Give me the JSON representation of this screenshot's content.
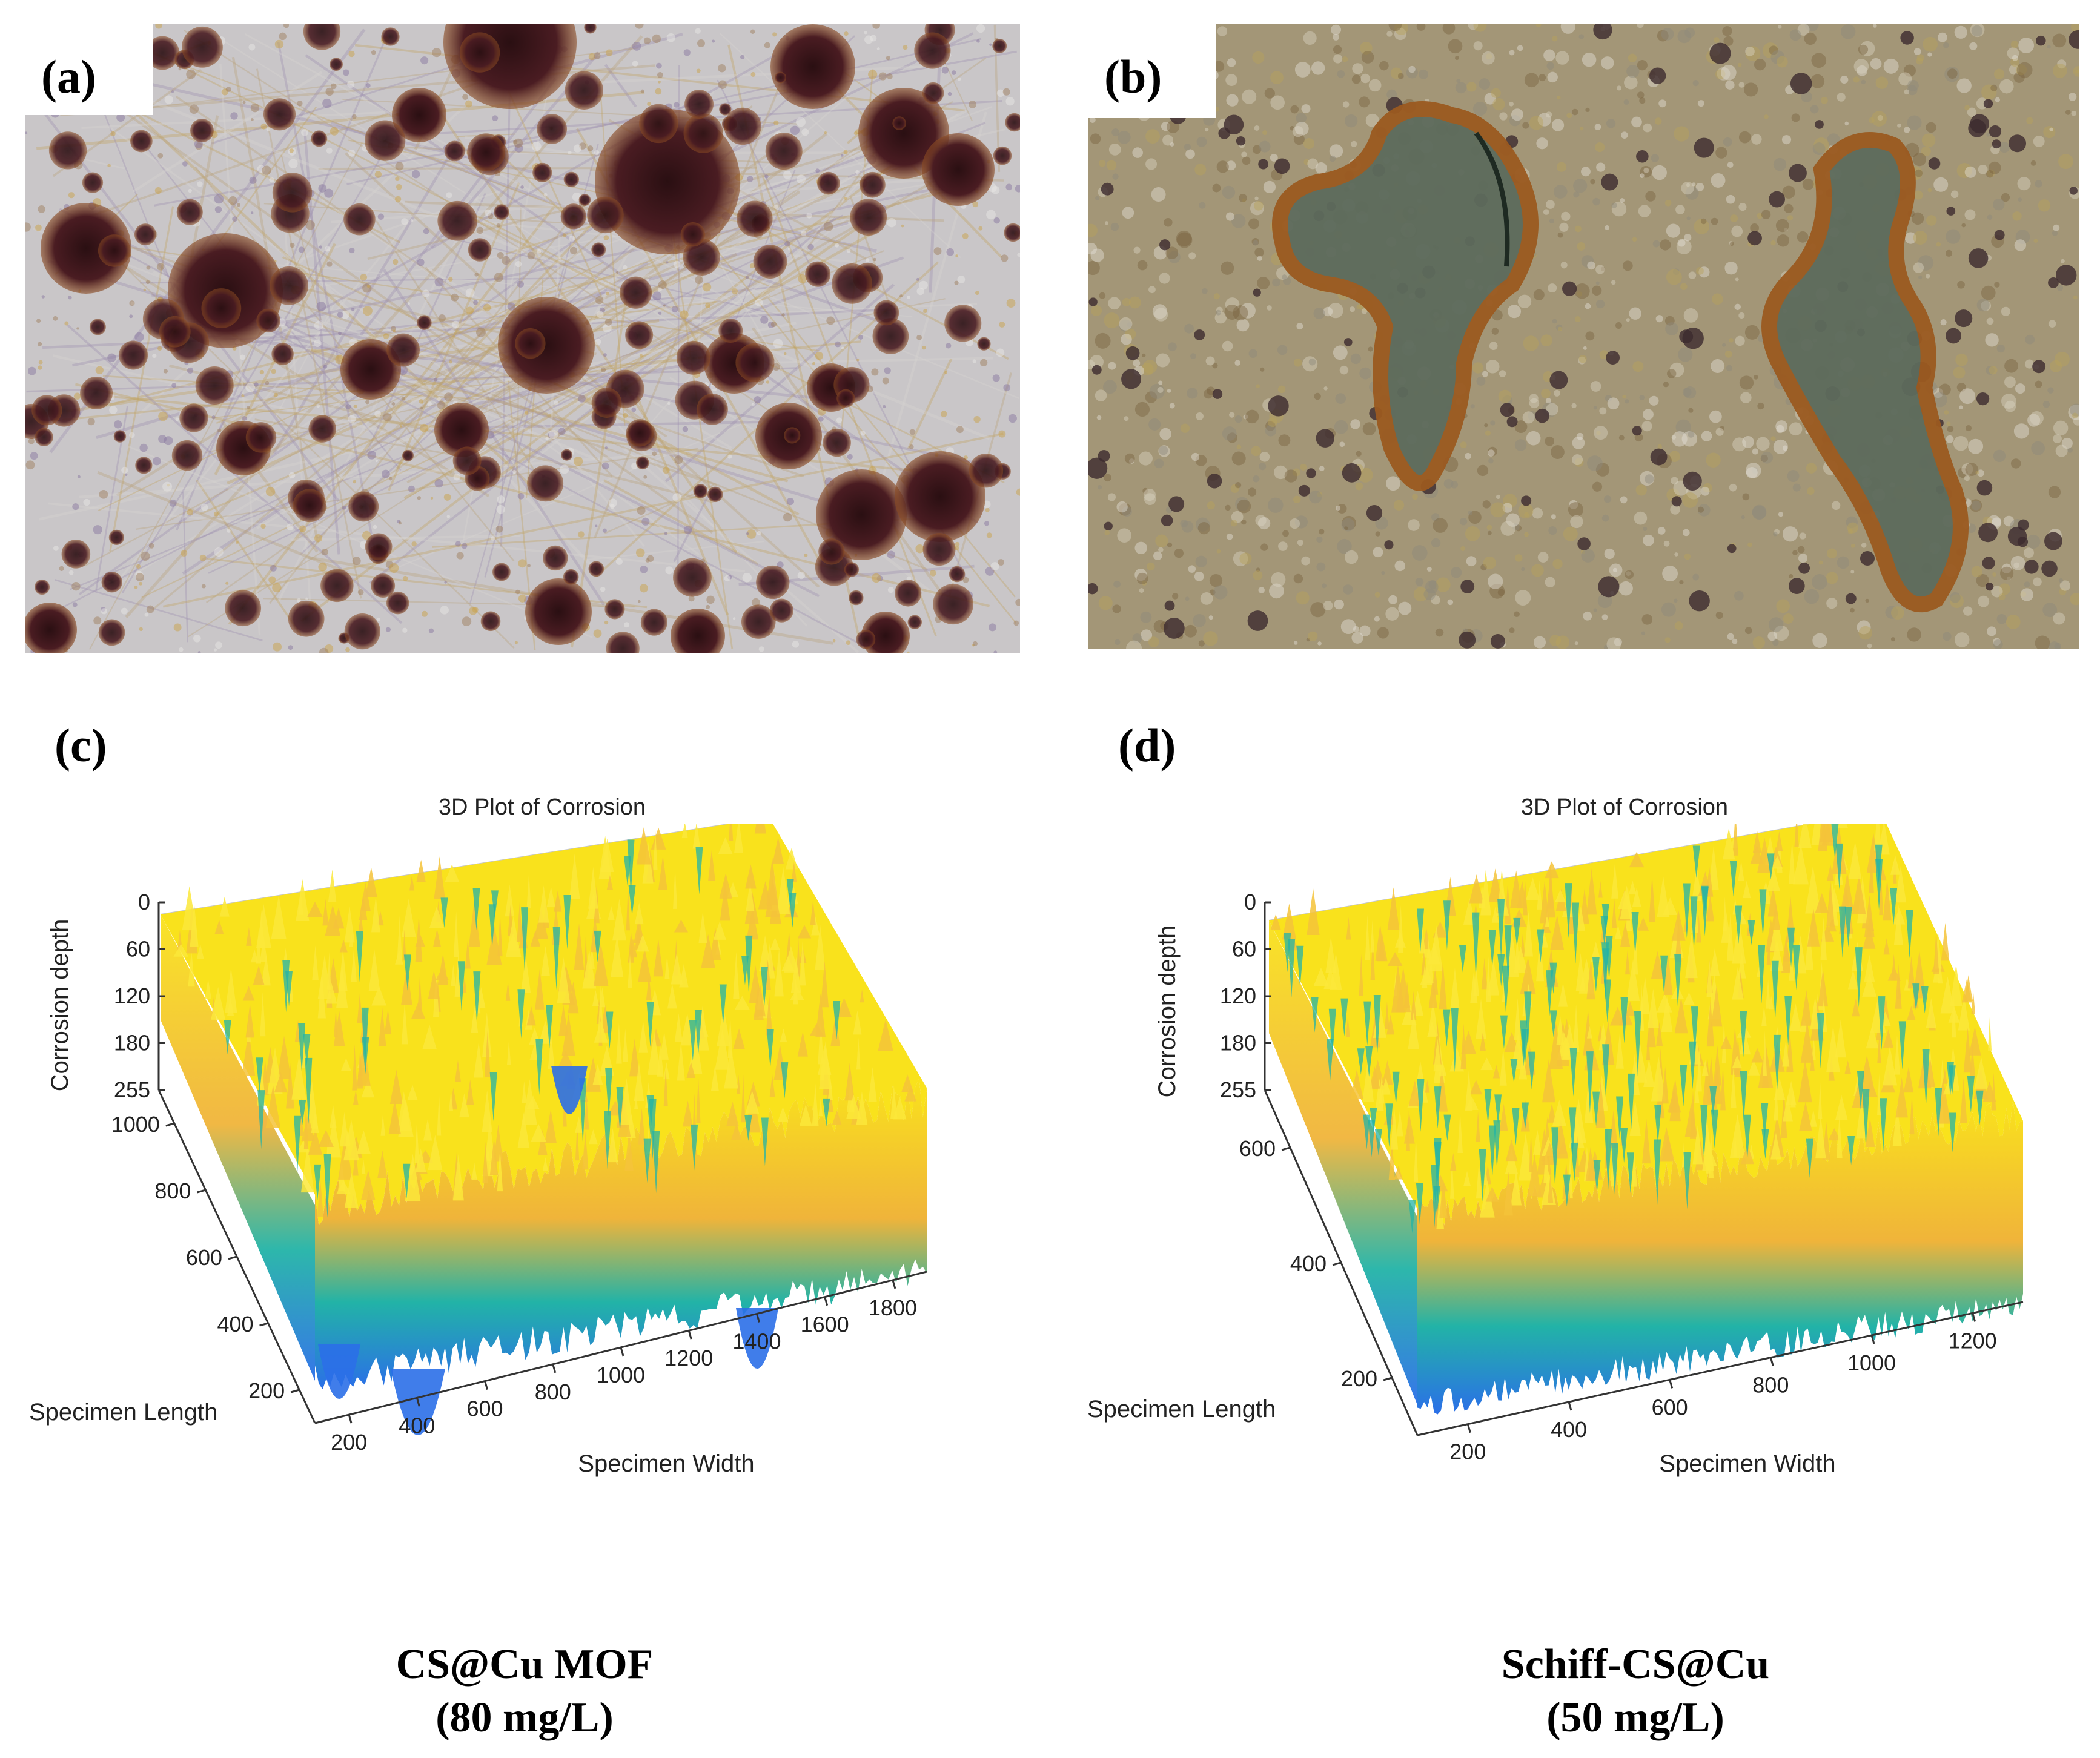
{
  "panels": {
    "a": {
      "label": "(a)"
    },
    "b": {
      "label": "(b)"
    },
    "c": {
      "label": "(c)"
    },
    "d": {
      "label": "(d)"
    }
  },
  "plots": [
    {
      "id": "c",
      "title": "3D Plot of Corrosion",
      "z_label": "Corrosion depth",
      "x_label": "Specimen Width",
      "y_label": "Specimen Length",
      "z_ticks": [
        "0",
        "60",
        "120",
        "180",
        "255"
      ],
      "x_ticks": [
        "200",
        "400",
        "600",
        "800",
        "1000",
        "1200",
        "1400",
        "1600",
        "1800"
      ],
      "y_ticks": [
        "200",
        "400",
        "600",
        "800",
        "1000"
      ]
    },
    {
      "id": "d",
      "title": "3D Plot of Corrosion",
      "z_label": "Corrosion depth",
      "x_label": "Specimen Width",
      "y_label": "Specimen Length",
      "z_ticks": [
        "0",
        "60",
        "120",
        "180",
        "255"
      ],
      "x_ticks": [
        "200",
        "400",
        "600",
        "800",
        "1000",
        "1200"
      ],
      "y_ticks": [
        "200",
        "400",
        "600"
      ]
    }
  ],
  "captions": {
    "left": {
      "line1": "CS@Cu MOF",
      "line2": "(80 mg/L)"
    },
    "right": {
      "line1": "Schiff-CS@Cu",
      "line2": "(50 mg/L)"
    }
  },
  "colors": {
    "surface_top": "#f9e21c",
    "surface_mid": "#f0b43a",
    "surface_teal": "#22b3a7",
    "surface_low": "#2b6fe8",
    "micro_bg_a": "#c9c6c8",
    "micro_pit_a": "#4a1c22",
    "micro_bg_b": "#a39677",
    "micro_patch_b": "#5d6b5c"
  }
}
